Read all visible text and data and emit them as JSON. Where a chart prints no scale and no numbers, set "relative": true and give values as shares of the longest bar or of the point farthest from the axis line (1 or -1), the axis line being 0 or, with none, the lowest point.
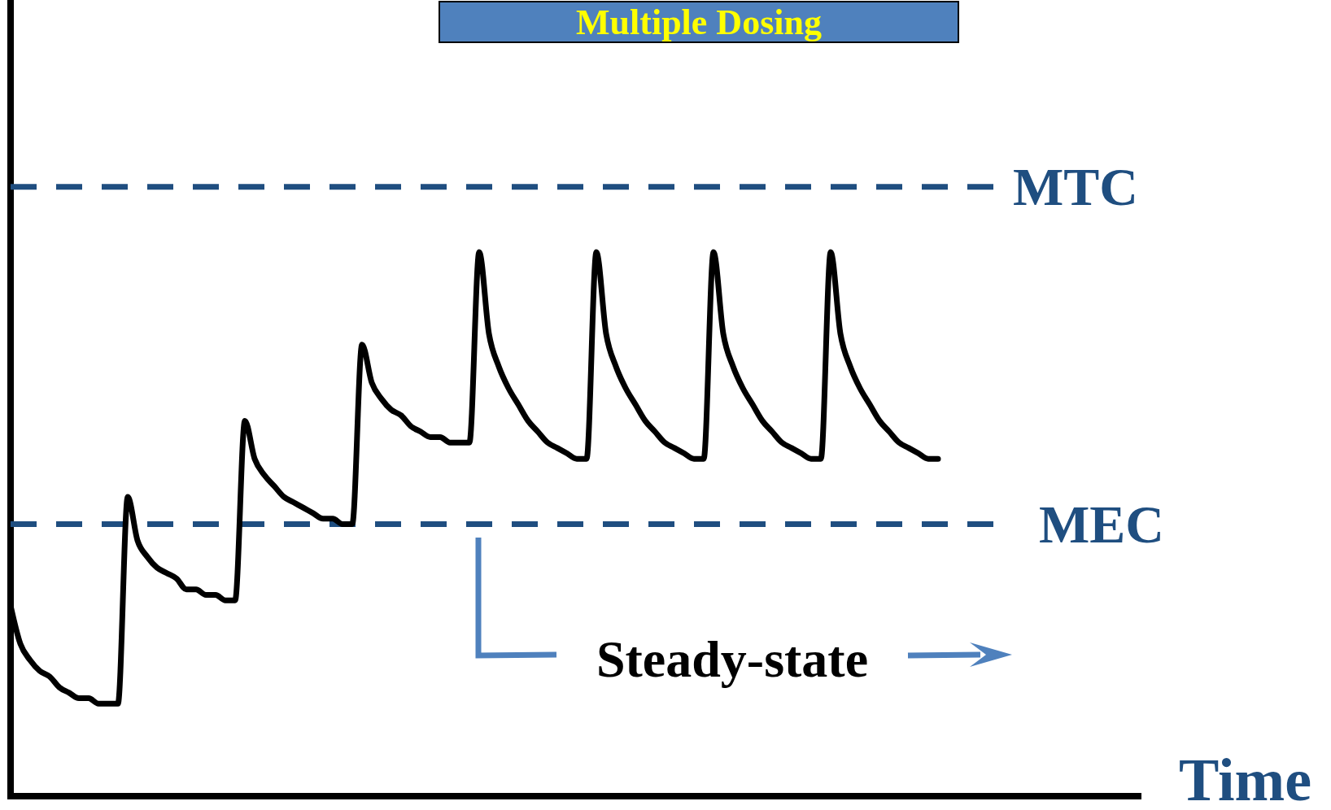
{
  "chart_data": {
    "type": "line",
    "title": "Multiple Dosing",
    "xlabel": "Time",
    "relative": true,
    "color": "#000000",
    "line_style": "solid",
    "categories": [
      null,
      null,
      null,
      null,
      null,
      null,
      null,
      null,
      null,
      null,
      null,
      null,
      null,
      null,
      null,
      null,
      null,
      null,
      null,
      null,
      null,
      null,
      null,
      null,
      null,
      null,
      null,
      null,
      null,
      null,
      null,
      null,
      null,
      null,
      null,
      null,
      null,
      null,
      null,
      null,
      null,
      null,
      null,
      null,
      null,
      null,
      null,
      null,
      null,
      null,
      null,
      null,
      null,
      null,
      null,
      null,
      null,
      null,
      null,
      null,
      null,
      null,
      null,
      null,
      null,
      null,
      null,
      null,
      null,
      null,
      null,
      null,
      null,
      null,
      null,
      null,
      null,
      null,
      null,
      null,
      null,
      null,
      null,
      null,
      null,
      null,
      null,
      null,
      null,
      null,
      null,
      null,
      null,
      null,
      null,
      null
    ],
    "values": [
      0.35,
      0.28,
      0.25,
      0.23,
      0.22,
      0.2,
      0.19,
      0.18,
      0.18,
      0.17,
      0.17,
      0.17,
      0.55,
      0.47,
      0.44,
      0.42,
      0.41,
      0.4,
      0.38,
      0.38,
      0.37,
      0.37,
      0.36,
      0.36,
      0.69,
      0.62,
      0.59,
      0.57,
      0.55,
      0.54,
      0.53,
      0.52,
      0.51,
      0.51,
      0.5,
      0.5,
      0.83,
      0.76,
      0.73,
      0.71,
      0.7,
      0.68,
      0.67,
      0.66,
      0.66,
      0.65,
      0.65,
      0.65,
      1,
      0.85,
      0.79,
      0.75,
      0.72,
      0.69,
      0.67,
      0.65,
      0.64,
      0.63,
      0.62,
      0.62,
      1,
      0.85,
      0.79,
      0.75,
      0.72,
      0.69,
      0.67,
      0.65,
      0.64,
      0.63,
      0.62,
      0.62,
      1,
      0.85,
      0.79,
      0.75,
      0.72,
      0.69,
      0.67,
      0.65,
      0.64,
      0.63,
      0.62,
      0.62,
      1,
      0.85,
      0.79,
      0.75,
      0.72,
      0.69,
      0.67,
      0.65,
      0.64,
      0.63,
      0.62,
      0.62
    ],
    "ref_lines": [
      {
        "axis": "y",
        "value": 1.12,
        "label": "MTC",
        "color": "#1f4e80",
        "line_style": "dashed"
      },
      {
        "axis": "y",
        "value": 0.5,
        "label": "MEC",
        "color": "#1f4e80",
        "line_style": "dashed"
      }
    ],
    "annotations": [
      "Steady-state"
    ]
  }
}
